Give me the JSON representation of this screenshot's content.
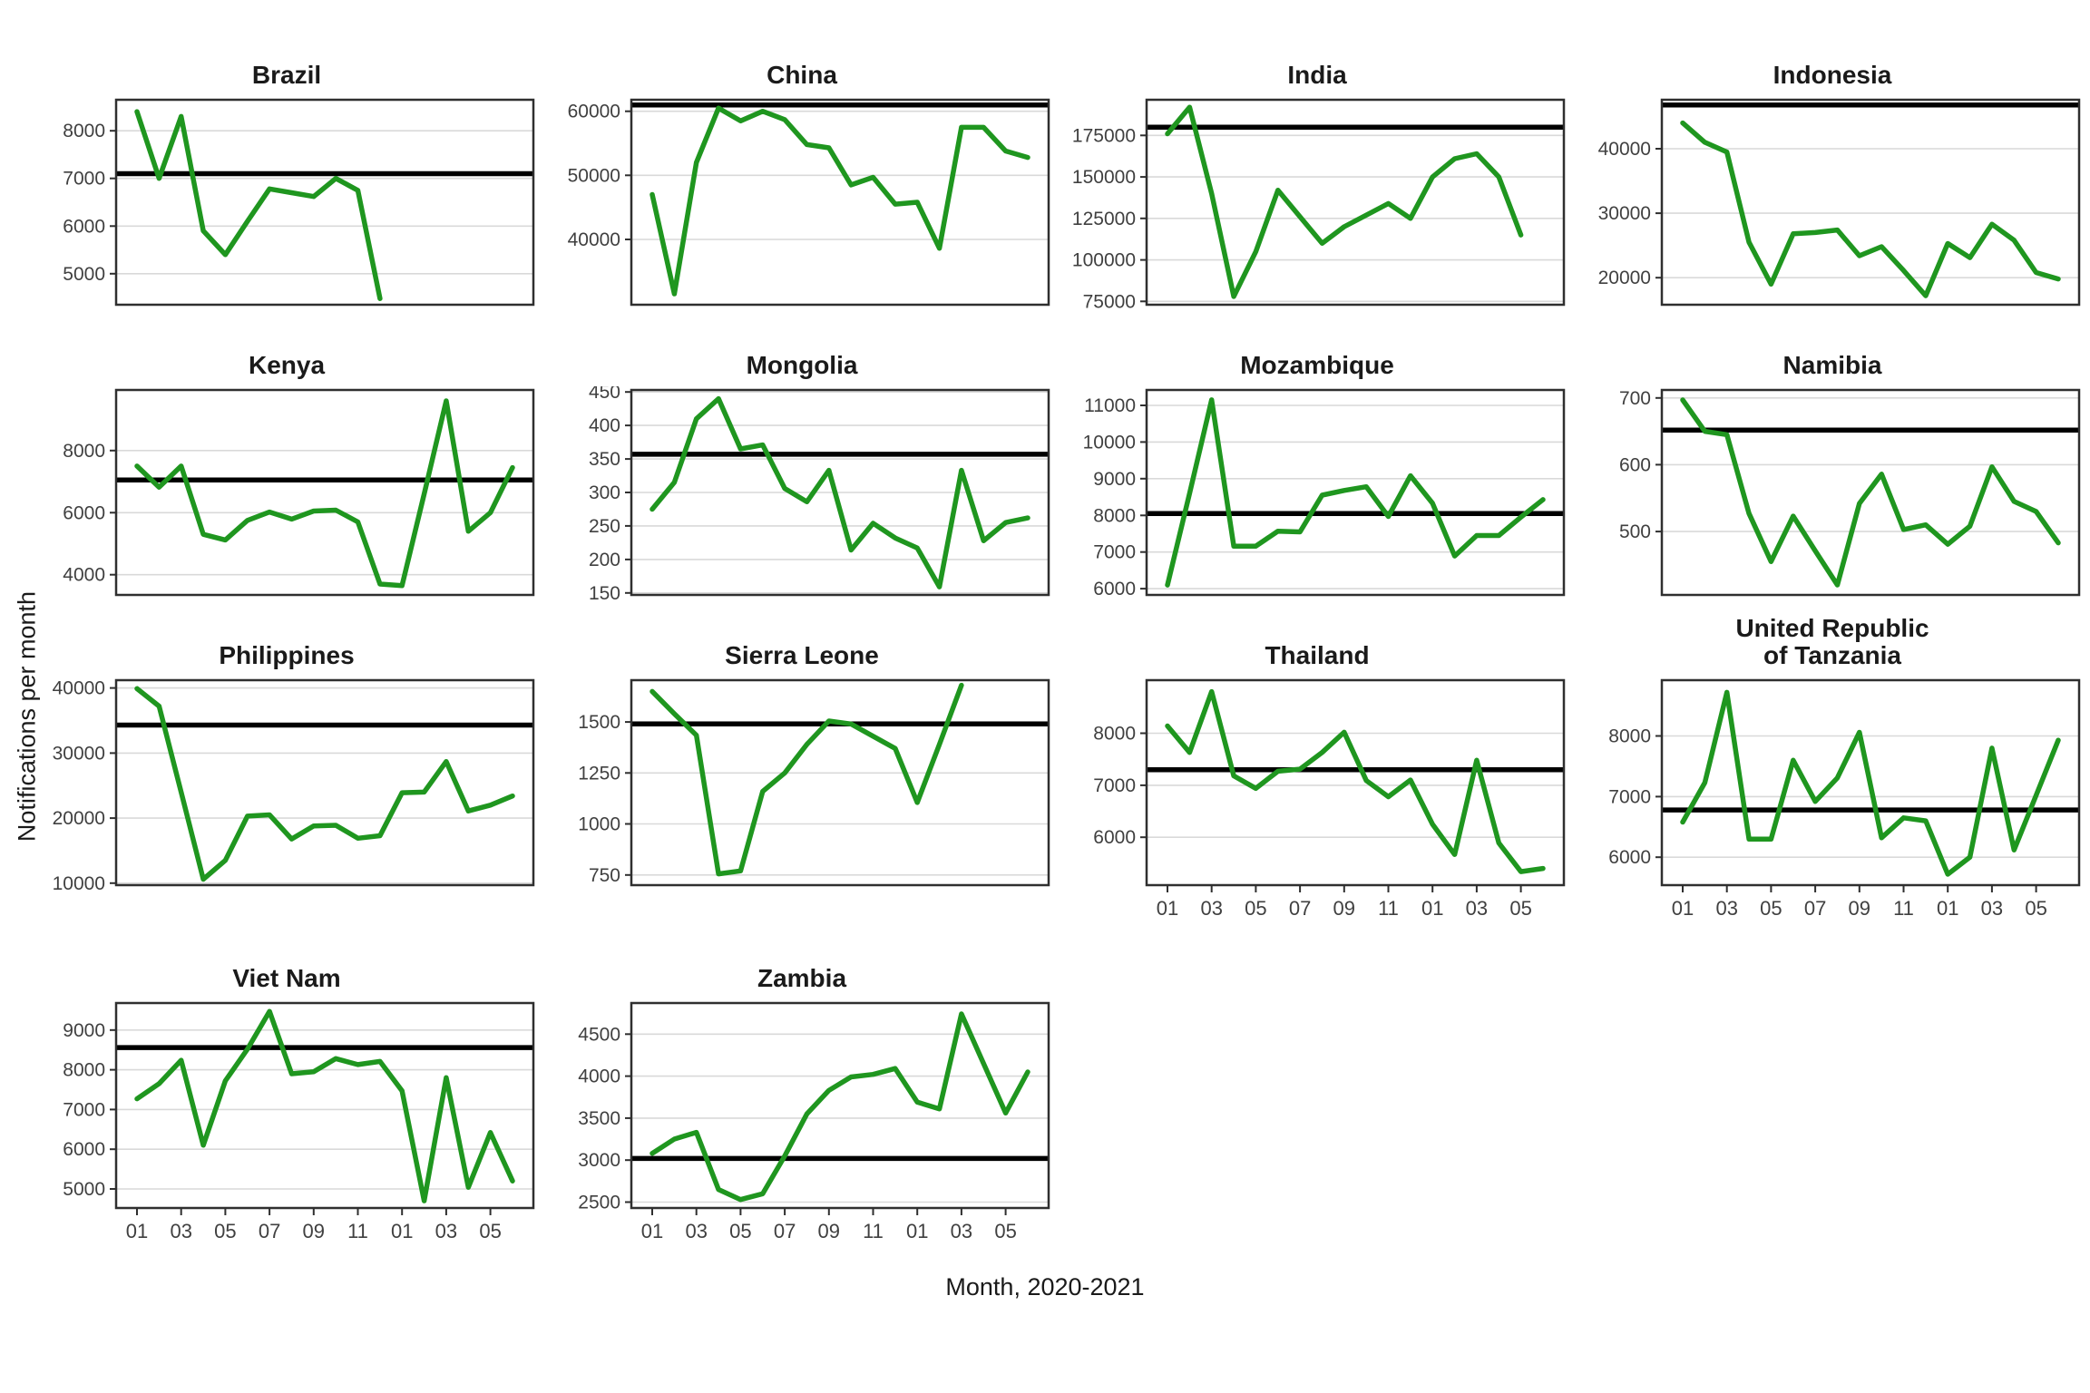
{
  "figure": {
    "y_axis_label": "Notifications per month",
    "x_axis_label": "Month, 2020-2021"
  },
  "style": {
    "line_color": "#1f961f",
    "baseline_color": "#000000",
    "grid_color": "#d9d9d9",
    "panel_border_color": "#2f2f2f",
    "tick_label_color": "#404040",
    "background": "#ffffff"
  },
  "x_axis": {
    "total_months": 18,
    "tick_month_indices": [
      0,
      2,
      4,
      6,
      8,
      10,
      12,
      14,
      16
    ],
    "tick_labels": [
      "01",
      "03",
      "05",
      "07",
      "09",
      "11",
      "01",
      "03",
      "05"
    ]
  },
  "chart_data": [
    {
      "type": "line",
      "title": "Brazil",
      "baseline": 7100,
      "yticks": [
        5000,
        6000,
        7000,
        8000
      ],
      "ylim": [
        4350,
        8650
      ],
      "show_x_axis": false,
      "values": [
        8400,
        7000,
        8300,
        5900,
        5400,
        6100,
        6780,
        6700,
        6620,
        7000,
        6750,
        4480
      ]
    },
    {
      "type": "line",
      "title": "China",
      "baseline": 61000,
      "yticks": [
        40000,
        50000,
        60000
      ],
      "ylim": [
        29800,
        61800
      ],
      "show_x_axis": false,
      "values": [
        47000,
        31500,
        52000,
        60500,
        58500,
        60000,
        58700,
        54800,
        54300,
        48500,
        49700,
        45500,
        45800,
        38600,
        57500,
        57500,
        53800,
        52800
      ]
    },
    {
      "type": "line",
      "title": "India",
      "baseline": 180000,
      "yticks": [
        75000,
        100000,
        125000,
        150000,
        175000
      ],
      "ylim": [
        73000,
        196500
      ],
      "show_x_axis": false,
      "values": [
        176000,
        192000,
        140000,
        78000,
        105000,
        142000,
        126000,
        110000,
        120000,
        127000,
        134000,
        125000,
        150000,
        161000,
        164000,
        150000,
        115000
      ]
    },
    {
      "type": "line",
      "title": "Indonesia",
      "baseline": 46800,
      "yticks": [
        20000,
        30000,
        40000
      ],
      "ylim": [
        15800,
        47600
      ],
      "show_x_axis": false,
      "values": [
        44000,
        41000,
        39500,
        25500,
        19000,
        26800,
        27000,
        27400,
        23400,
        24800,
        21100,
        17200,
        25300,
        23100,
        28300,
        25800,
        20800,
        19800
      ]
    },
    {
      "type": "line",
      "title": "Kenya",
      "baseline": 7050,
      "yticks": [
        4000,
        6000,
        8000
      ],
      "ylim": [
        3350,
        9950
      ],
      "show_x_axis": false,
      "values": [
        7500,
        6820,
        7500,
        5300,
        5120,
        5750,
        6020,
        5790,
        6050,
        6080,
        5700,
        3700,
        3650,
        6600,
        9600,
        5400,
        6000,
        7450
      ]
    },
    {
      "type": "line",
      "title": "Mongolia",
      "baseline": 357,
      "yticks": [
        150,
        200,
        250,
        300,
        350,
        400,
        450
      ],
      "ylim": [
        147,
        453
      ],
      "show_x_axis": false,
      "values": [
        275,
        315,
        410,
        440,
        365,
        371,
        306,
        286,
        333,
        214,
        254,
        232,
        217,
        159,
        333,
        228,
        255,
        262
      ]
    },
    {
      "type": "line",
      "title": "Mozambique",
      "baseline": 8050,
      "yticks": [
        6000,
        7000,
        8000,
        9000,
        10000,
        11000
      ],
      "ylim": [
        5830,
        11420
      ],
      "show_x_axis": false,
      "values": [
        6100,
        8600,
        11150,
        7160,
        7160,
        7570,
        7550,
        8550,
        8680,
        8780,
        7970,
        9080,
        8330,
        6890,
        7450,
        7450,
        7950,
        8430
      ]
    },
    {
      "type": "line",
      "title": "Namibia",
      "baseline": 652,
      "yticks": [
        500,
        600,
        700
      ],
      "ylim": [
        405,
        712
      ],
      "show_x_axis": false,
      "values": [
        697,
        650,
        645,
        527,
        455,
        523,
        471,
        420,
        542,
        586,
        503,
        510,
        481,
        508,
        597,
        545,
        530,
        483
      ]
    },
    {
      "type": "line",
      "title": "Philippines",
      "baseline": 34300,
      "yticks": [
        10000,
        20000,
        30000,
        40000
      ],
      "ylim": [
        9700,
        41200
      ],
      "show_x_axis": false,
      "values": [
        39900,
        37200,
        24000,
        10600,
        13500,
        20300,
        20500,
        16800,
        18800,
        18900,
        16900,
        17300,
        23900,
        24000,
        28700,
        21100,
        22000,
        23400
      ]
    },
    {
      "type": "line",
      "title": "Sierra Leone",
      "baseline": 1490,
      "yticks": [
        750,
        1000,
        1250,
        1500
      ],
      "ylim": [
        700,
        1705
      ],
      "show_x_axis": false,
      "values": [
        1650,
        1540,
        1435,
        755,
        770,
        1160,
        1250,
        1390,
        1505,
        1490,
        1430,
        1370,
        1105,
        1390,
        1680
      ]
    },
    {
      "type": "line",
      "title": "Thailand",
      "baseline": 7300,
      "yticks": [
        6000,
        7000,
        8000
      ],
      "ylim": [
        5080,
        9020
      ],
      "show_x_axis": true,
      "values": [
        8140,
        7630,
        8800,
        7180,
        6940,
        7270,
        7310,
        7630,
        8020,
        7090,
        6780,
        7100,
        6250,
        5670,
        7480,
        5890,
        5340,
        5400
      ]
    },
    {
      "type": "line",
      "title": "United Republic\nof Tanzania",
      "baseline": 6780,
      "yticks": [
        6000,
        7000,
        8000
      ],
      "ylim": [
        5540,
        8920
      ],
      "show_x_axis": true,
      "values": [
        6580,
        7230,
        8720,
        6300,
        6300,
        7600,
        6920,
        7310,
        8060,
        6320,
        6650,
        6600,
        5720,
        6000,
        7800,
        6120,
        7020,
        7930
      ]
    },
    {
      "type": "line",
      "title": "Viet Nam",
      "baseline": 8560,
      "yticks": [
        5000,
        6000,
        7000,
        8000,
        9000
      ],
      "ylim": [
        4520,
        9680
      ],
      "show_x_axis": true,
      "values": [
        7270,
        7650,
        8240,
        6100,
        7720,
        8520,
        9470,
        7900,
        7950,
        8280,
        8130,
        8210,
        7470,
        4700,
        7800,
        5040,
        6420,
        5200
      ]
    },
    {
      "type": "line",
      "title": "Zambia",
      "baseline": 3020,
      "yticks": [
        2500,
        3000,
        3500,
        4000,
        4500
      ],
      "ylim": [
        2430,
        4870
      ],
      "show_x_axis": true,
      "values": [
        3080,
        3250,
        3330,
        2650,
        2530,
        2600,
        3050,
        3550,
        3830,
        3990,
        4020,
        4090,
        3690,
        3610,
        4740,
        4150,
        3560,
        4050
      ]
    }
  ]
}
